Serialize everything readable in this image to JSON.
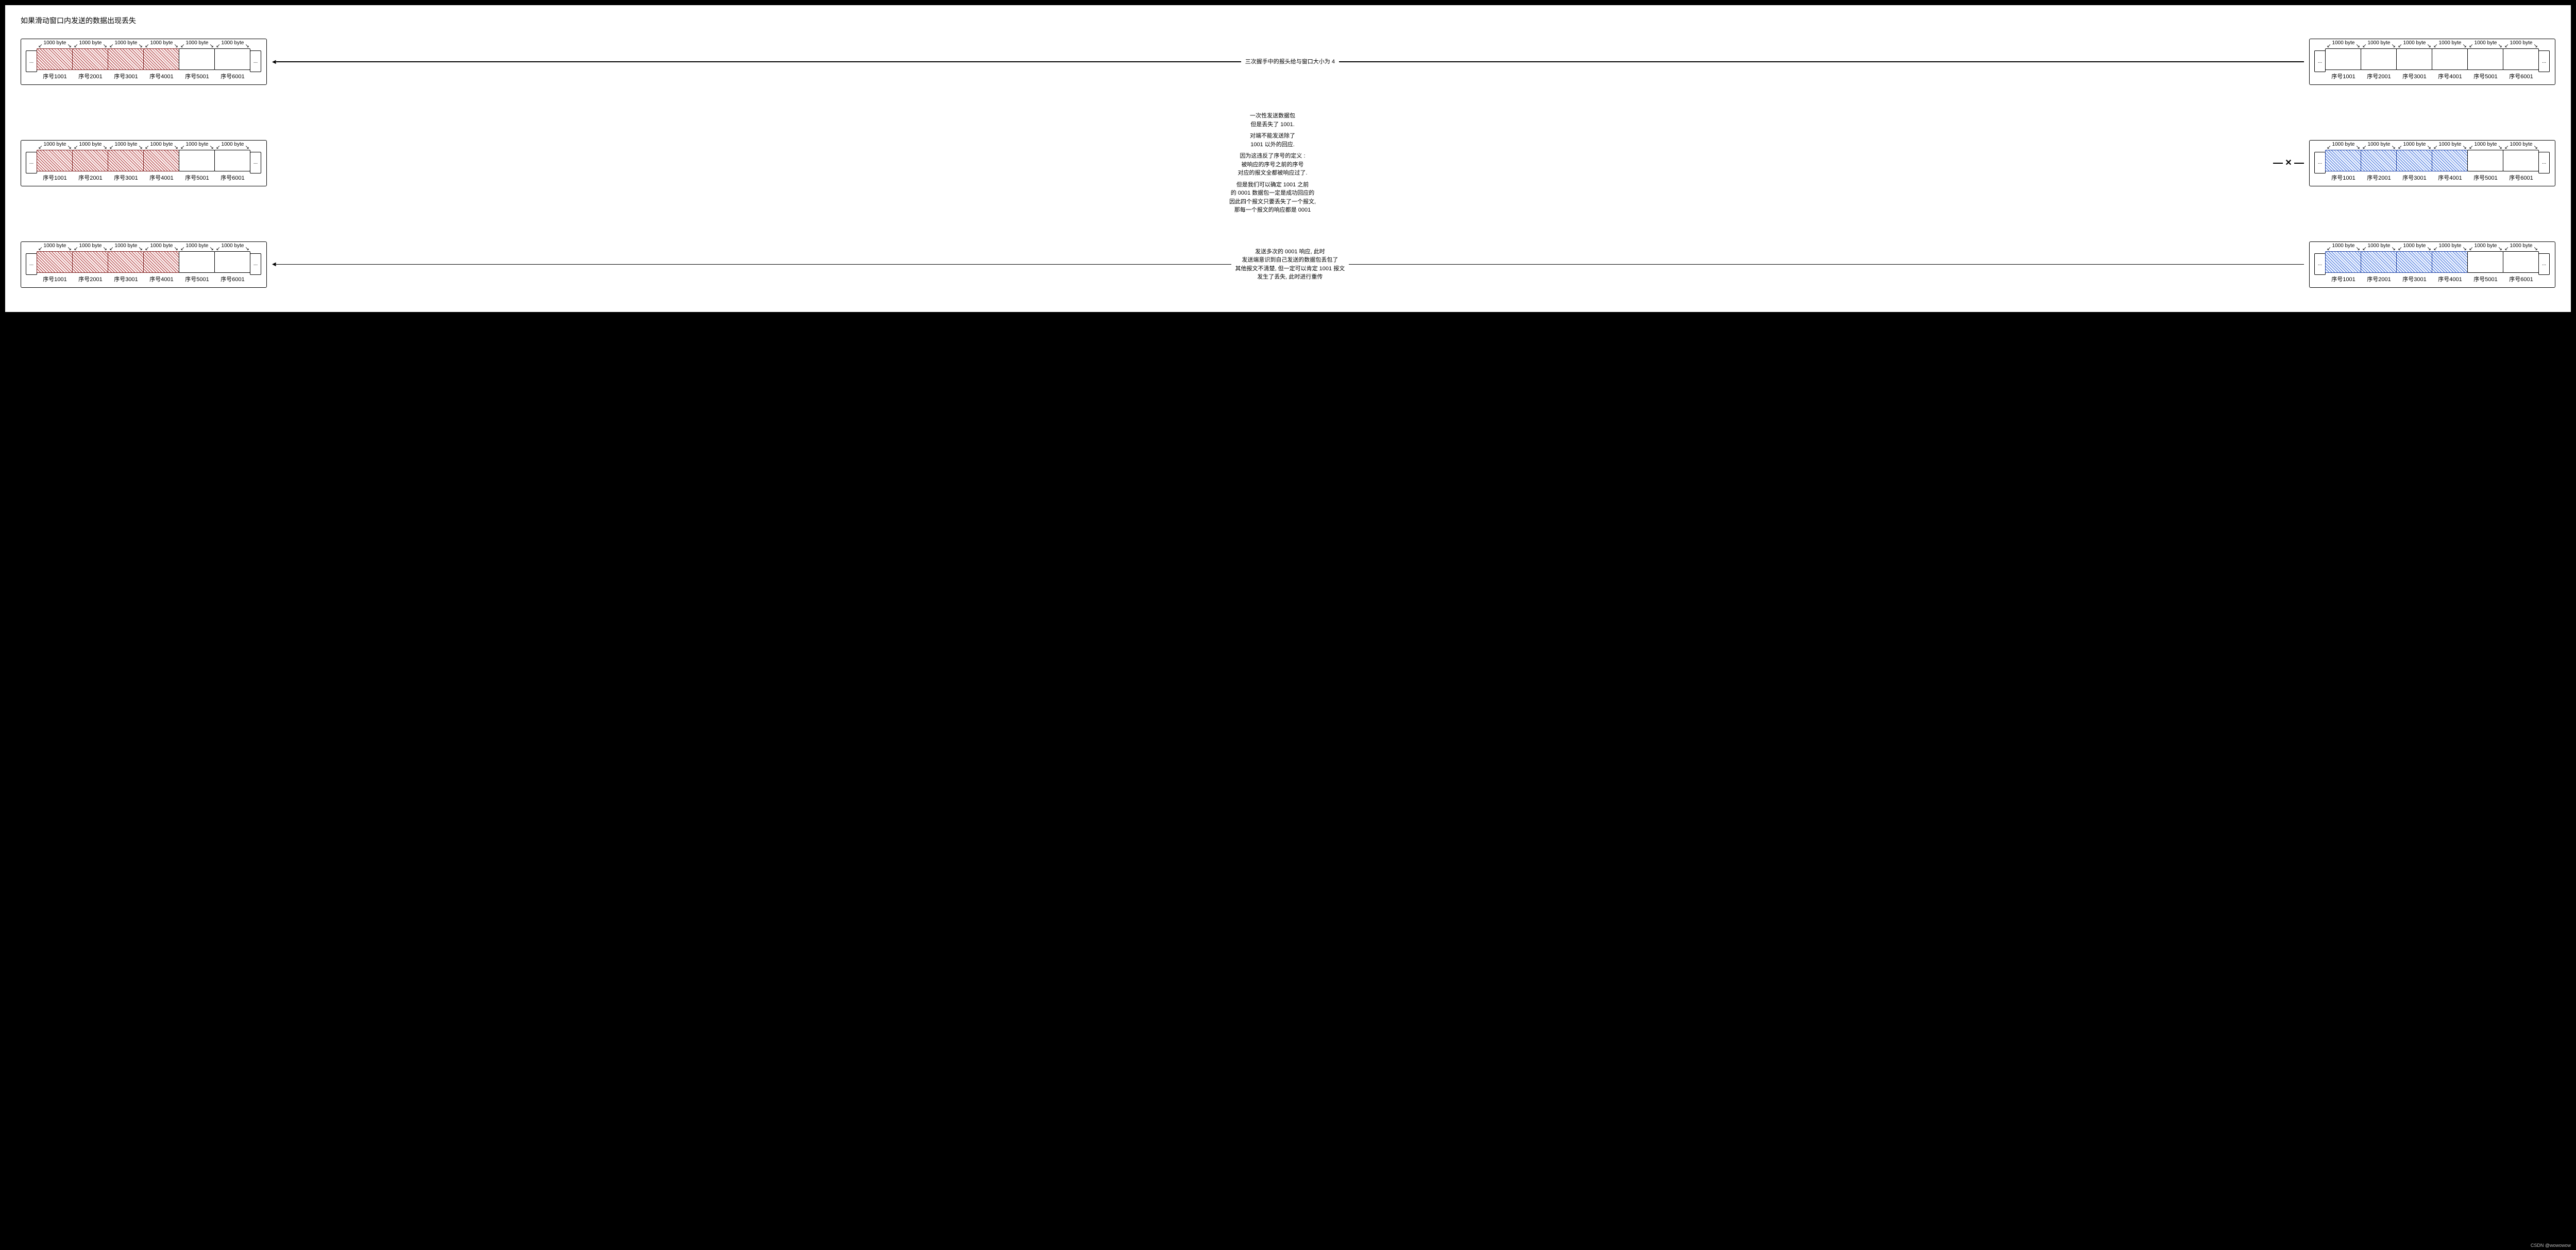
{
  "title": "如果滑动窗口内发送的数据出现丢失",
  "byte_label": "1000 byte",
  "ellipsis": "...",
  "seq_labels": [
    "序号1001",
    "序号2001",
    "序号3001",
    "序号4001",
    "序号5001",
    "序号6001"
  ],
  "colors": {
    "red_border": "#7a1f1f",
    "blue_border": "#1e3fa0",
    "red_hatch": "#a83232",
    "blue_hatch": "#3a6bd8",
    "background": "#ffffff",
    "ink": "#000000"
  },
  "rows": [
    {
      "left_fill": [
        "red",
        "red",
        "red",
        "red",
        "none",
        "none"
      ],
      "right_fill": [
        "none",
        "none",
        "none",
        "none",
        "none",
        "none"
      ],
      "mid": {
        "type": "arrow-left",
        "lines": [
          "三次握手中的报头给与窗口大小为 4"
        ]
      }
    },
    {
      "left_fill": [
        "red",
        "red",
        "red",
        "red",
        "none",
        "none"
      ],
      "right_fill": [
        "blue",
        "blue",
        "blue",
        "blue",
        "none",
        "none"
      ],
      "mid": {
        "type": "text-with-x-right",
        "lines": [
          "一次性发送数据包",
          "但是丢失了 1001.",
          "",
          "对端不能发送除了",
          "1001 以外的回应.",
          "",
          "因为这违反了序号的定义 :",
          "被响应的序号之前的序号",
          "对应的报文全都被响应过了.",
          "",
          "但是我们可以确定 1001 之前",
          "的 0001 数据包一定是成功回应的",
          "因此四个报文只要丢失了一个报文,",
          "那每一个报文的响应都是 0001"
        ]
      }
    },
    {
      "left_fill": [
        "red",
        "red",
        "red",
        "red",
        "none",
        "none"
      ],
      "right_fill": [
        "blue",
        "blue",
        "blue",
        "blue",
        "none",
        "none"
      ],
      "mid": {
        "type": "arrow-left",
        "lines": [
          "发送多次的 0001 响应, 此时",
          "发送端意识到自己发送的数据包丢包了",
          "其他报文不清楚, 但一定可以肯定 1001 报文",
          "发生了丢失, 此时进行重传"
        ]
      }
    }
  ],
  "watermark": "CSDN @wowowow"
}
